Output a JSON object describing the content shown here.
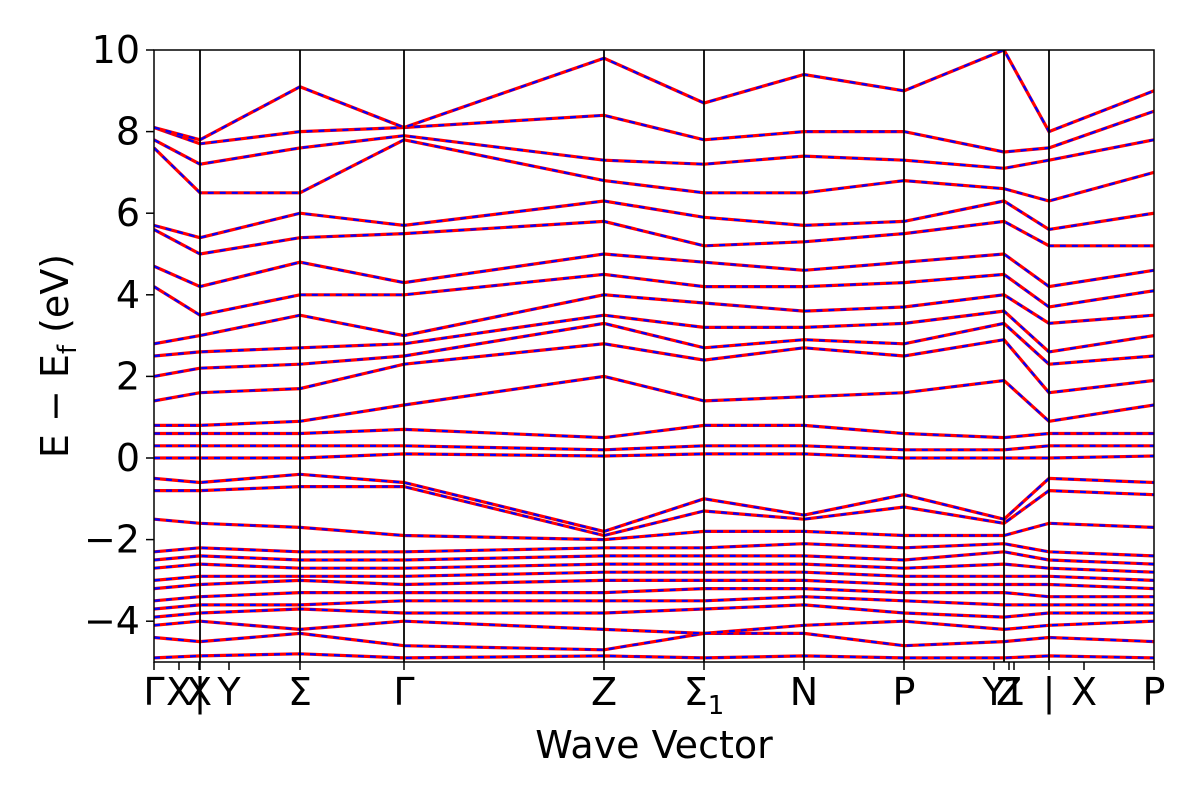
{
  "chart_data": {
    "type": "line",
    "title": "",
    "xlabel": "Wave Vector",
    "ylabel": "E − E_f (eV)",
    "ylabel_parts": {
      "main": "E − E",
      "sub": "f",
      "unit": " (eV)"
    },
    "ylim": [
      -5,
      10
    ],
    "xlim": [
      0,
      10
    ],
    "yticks": [
      -4,
      -2,
      0,
      2,
      4,
      6,
      8,
      10
    ],
    "ytick_labels": [
      "−4",
      "−2",
      "0",
      "2",
      "4",
      "6",
      "8",
      "10"
    ],
    "grid": false,
    "legend": "none",
    "high_symmetry_points": [
      {
        "label": "Γ",
        "x": 0.0
      },
      {
        "label": "X",
        "x": 0.25
      },
      {
        "label": "X",
        "x": 0.45
      },
      {
        "label": "|",
        "x": 0.46
      },
      {
        "label": "Y",
        "x": 0.75
      },
      {
        "label": "Σ",
        "x": 1.46
      },
      {
        "label": "Γ",
        "x": 2.5
      },
      {
        "label": "Z",
        "x": 4.5
      },
      {
        "label": "Σ",
        "label_sub": "1",
        "x": 5.5
      },
      {
        "label": "N",
        "x": 6.5
      },
      {
        "label": "P",
        "x": 7.5
      },
      {
        "label": "Y",
        "x": 8.4
      },
      {
        "label": "Z",
        "x": 8.55
      },
      {
        "label": "1",
        "x": 8.6
      },
      {
        "label": "|",
        "x": 8.95
      },
      {
        "label": "X",
        "x": 9.3
      },
      {
        "label": "P",
        "x": 10.0
      }
    ],
    "segment_lines_x": [
      0.46,
      1.46,
      2.5,
      4.5,
      5.5,
      6.5,
      7.5,
      8.5,
      8.95
    ],
    "series": [
      {
        "name": "",
        "color": "#ff0000",
        "style": "solid"
      },
      {
        "name": "",
        "color": "#0000ff",
        "style": "dashed"
      }
    ],
    "bands_at_nodes": {
      "node_x": [
        0,
        0.46,
        1.46,
        2.5,
        4.5,
        5.5,
        6.5,
        7.5,
        8.5,
        8.95,
        10.0
      ],
      "bands": [
        [
          -4.9,
          -4.85,
          -4.8,
          -4.9,
          -4.85,
          -4.9,
          -4.85,
          -4.9,
          -4.9,
          -4.85,
          -4.9
        ],
        [
          -4.4,
          -4.5,
          -4.3,
          -4.6,
          -4.7,
          -4.3,
          -4.3,
          -4.6,
          -4.5,
          -4.4,
          -4.5
        ],
        [
          -4.1,
          -4.0,
          -4.2,
          -4.0,
          -4.2,
          -4.3,
          -4.1,
          -4.0,
          -4.2,
          -4.1,
          -4.0
        ],
        [
          -3.9,
          -3.8,
          -3.7,
          -3.8,
          -3.8,
          -3.7,
          -3.6,
          -3.8,
          -3.9,
          -3.8,
          -3.8
        ],
        [
          -3.7,
          -3.6,
          -3.6,
          -3.5,
          -3.5,
          -3.5,
          -3.4,
          -3.5,
          -3.6,
          -3.6,
          -3.6
        ],
        [
          -3.5,
          -3.4,
          -3.3,
          -3.3,
          -3.3,
          -3.2,
          -3.2,
          -3.3,
          -3.3,
          -3.4,
          -3.4
        ],
        [
          -3.2,
          -3.1,
          -3.0,
          -3.1,
          -3.0,
          -3.0,
          -3.0,
          -3.1,
          -3.1,
          -3.1,
          -3.2
        ],
        [
          -3.0,
          -2.9,
          -2.9,
          -2.9,
          -2.8,
          -2.8,
          -2.8,
          -2.9,
          -2.9,
          -2.9,
          -3.0
        ],
        [
          -2.7,
          -2.6,
          -2.7,
          -2.7,
          -2.6,
          -2.6,
          -2.6,
          -2.7,
          -2.6,
          -2.7,
          -2.8
        ],
        [
          -2.5,
          -2.4,
          -2.5,
          -2.5,
          -2.4,
          -2.4,
          -2.4,
          -2.5,
          -2.3,
          -2.5,
          -2.6
        ],
        [
          -2.3,
          -2.2,
          -2.3,
          -2.3,
          -2.2,
          -2.2,
          -2.1,
          -2.2,
          -2.1,
          -2.3,
          -2.4
        ],
        [
          -1.5,
          -1.6,
          -1.7,
          -1.9,
          -2.0,
          -1.8,
          -1.8,
          -1.9,
          -1.9,
          -1.6,
          -1.7
        ],
        [
          -0.8,
          -0.8,
          -0.7,
          -0.7,
          -1.9,
          -1.3,
          -1.5,
          -1.2,
          -1.6,
          -0.8,
          -0.9
        ],
        [
          -0.5,
          -0.6,
          -0.4,
          -0.6,
          -1.8,
          -1.0,
          -1.4,
          -0.9,
          -1.5,
          -0.5,
          -0.6
        ],
        [
          0.0,
          0.0,
          0.0,
          0.1,
          0.05,
          0.1,
          0.1,
          0.0,
          0.0,
          0.0,
          0.05
        ],
        [
          0.3,
          0.3,
          0.3,
          0.3,
          0.2,
          0.3,
          0.3,
          0.2,
          0.2,
          0.3,
          0.3
        ],
        [
          0.6,
          0.6,
          0.6,
          0.7,
          0.5,
          0.8,
          0.8,
          0.6,
          0.5,
          0.6,
          0.6
        ],
        [
          0.8,
          0.8,
          0.9,
          1.3,
          2.0,
          1.4,
          1.5,
          1.6,
          1.9,
          0.9,
          1.3
        ],
        [
          1.4,
          1.6,
          1.7,
          2.3,
          2.8,
          2.4,
          2.7,
          2.5,
          2.9,
          1.6,
          1.9
        ],
        [
          2.0,
          2.2,
          2.3,
          2.5,
          3.3,
          2.7,
          2.9,
          2.8,
          3.3,
          2.3,
          2.5
        ],
        [
          2.5,
          2.6,
          2.7,
          2.8,
          3.5,
          3.2,
          3.2,
          3.3,
          3.6,
          2.6,
          3.0
        ],
        [
          2.8,
          3.0,
          3.5,
          3.0,
          4.0,
          3.8,
          3.6,
          3.7,
          4.0,
          3.3,
          3.5
        ],
        [
          4.2,
          3.5,
          4.0,
          4.0,
          4.5,
          4.2,
          4.2,
          4.3,
          4.5,
          3.7,
          4.1
        ],
        [
          4.7,
          4.2,
          4.8,
          4.3,
          5.0,
          4.8,
          4.6,
          4.8,
          5.0,
          4.2,
          4.6
        ],
        [
          5.6,
          5.0,
          5.4,
          5.5,
          5.8,
          5.2,
          5.3,
          5.5,
          5.8,
          5.2,
          5.2
        ],
        [
          5.7,
          5.4,
          6.0,
          5.7,
          6.3,
          5.9,
          5.7,
          5.8,
          6.3,
          5.6,
          6.0
        ],
        [
          7.6,
          6.5,
          6.5,
          7.8,
          6.8,
          6.5,
          6.5,
          6.8,
          6.6,
          6.3,
          7.0
        ],
        [
          7.8,
          7.2,
          7.6,
          7.9,
          7.3,
          7.2,
          7.4,
          7.3,
          7.1,
          7.3,
          7.8
        ],
        [
          8.1,
          7.7,
          8.0,
          8.1,
          8.4,
          7.8,
          8.0,
          8.0,
          7.5,
          7.6,
          8.5
        ],
        [
          8.1,
          7.8,
          9.1,
          8.1,
          9.8,
          8.7,
          9.4,
          9.0,
          10.0,
          8.0,
          9.0
        ]
      ]
    }
  }
}
